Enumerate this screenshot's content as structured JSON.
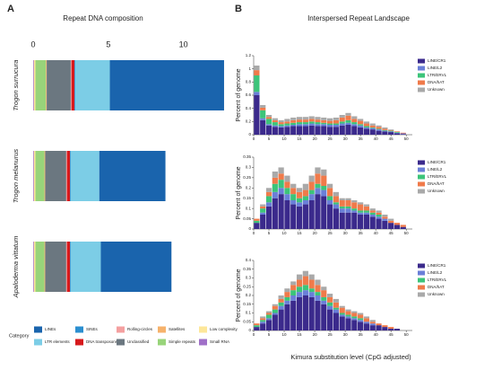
{
  "panel_labels": [
    "A",
    "B"
  ],
  "chart_data": [
    {
      "type": "stacked_barh",
      "title": "Repeat DNA composition",
      "categories": [
        "Trogon surrucura",
        "Trogon melanurus",
        "Apaloderma vittatum"
      ],
      "xlim": [
        0,
        13
      ],
      "xticks": [
        0,
        5,
        10
      ],
      "legend_title": "Category",
      "series": [
        {
          "name": "LINEs",
          "color": "#1a64ad",
          "values": [
            7.6,
            4.4,
            4.7
          ]
        },
        {
          "name": "LTR elements",
          "color": "#7ccde6",
          "values": [
            2.3,
            1.9,
            2.0
          ]
        },
        {
          "name": "SINEs",
          "color": "#2b8fd0",
          "values": [
            0.05,
            0.05,
            0.05
          ]
        },
        {
          "name": "DNA transposons",
          "color": "#d7191c",
          "values": [
            0.2,
            0.2,
            0.2
          ]
        },
        {
          "name": "Rolling-circles",
          "color": "#f4a0a0",
          "values": [
            0.05,
            0.05,
            0.05
          ]
        },
        {
          "name": "Unclassified",
          "color": "#6b7780",
          "values": [
            1.6,
            1.4,
            1.4
          ]
        },
        {
          "name": "Satellites",
          "color": "#f6b26b",
          "values": [
            0.05,
            0.05,
            0.05
          ]
        },
        {
          "name": "Simple repeats",
          "color": "#98d47a",
          "values": [
            0.7,
            0.6,
            0.6
          ]
        },
        {
          "name": "Low complexity",
          "color": "#fde79a",
          "values": [
            0.1,
            0.1,
            0.1
          ]
        },
        {
          "name": "Small RNA",
          "color": "#a070c8",
          "values": [
            0.05,
            0.05,
            0.05
          ]
        }
      ]
    },
    {
      "type": "histogram",
      "title": "Interspersed Repeat Landscape",
      "ylabel": "Percent of genome",
      "bins": [
        0,
        2,
        4,
        6,
        8,
        10,
        12,
        14,
        16,
        18,
        20,
        22,
        24,
        26,
        28,
        30,
        32,
        34,
        36,
        38,
        40,
        42,
        44,
        46,
        48,
        50
      ],
      "xlim": [
        0,
        52
      ],
      "xticks": [
        0,
        5,
        10,
        15,
        20,
        25,
        30,
        35,
        40,
        45,
        50
      ],
      "ylim": [
        0,
        1.2
      ],
      "yticks": [
        0,
        0.2,
        0.4,
        0.6,
        0.8,
        1,
        1.2
      ],
      "series": [
        {
          "name": "LINE/CR1",
          "color": "#3b2a8c",
          "values": [
            0.6,
            0.22,
            0.14,
            0.12,
            0.11,
            0.12,
            0.13,
            0.13,
            0.13,
            0.14,
            0.13,
            0.13,
            0.12,
            0.12,
            0.14,
            0.15,
            0.13,
            0.11,
            0.09,
            0.08,
            0.06,
            0.05,
            0.04,
            0.02,
            0.01
          ]
        },
        {
          "name": "LINE/L2",
          "color": "#6a7fd8",
          "values": [
            0.05,
            0.03,
            0.02,
            0.02,
            0.02,
            0.02,
            0.02,
            0.03,
            0.03,
            0.03,
            0.03,
            0.03,
            0.03,
            0.03,
            0.03,
            0.03,
            0.03,
            0.03,
            0.02,
            0.02,
            0.02,
            0.01,
            0.01,
            0.01,
            0.01
          ]
        },
        {
          "name": "LTR/ERVL",
          "color": "#3cc47a",
          "values": [
            0.25,
            0.12,
            0.08,
            0.05,
            0.03,
            0.03,
            0.03,
            0.03,
            0.03,
            0.03,
            0.03,
            0.02,
            0.02,
            0.02,
            0.03,
            0.04,
            0.03,
            0.02,
            0.02,
            0.01,
            0.01,
            0.01,
            0.01,
            0.01,
            0
          ]
        },
        {
          "name": "DNA/hAT",
          "color": "#f07a4a",
          "values": [
            0.08,
            0.04,
            0.03,
            0.03,
            0.03,
            0.03,
            0.04,
            0.04,
            0.04,
            0.04,
            0.04,
            0.04,
            0.04,
            0.05,
            0.06,
            0.07,
            0.05,
            0.05,
            0.04,
            0.03,
            0.03,
            0.02,
            0.01,
            0.01,
            0.01
          ]
        },
        {
          "name": "Unknown",
          "color": "#a9a9a9",
          "values": [
            0.07,
            0.04,
            0.03,
            0.03,
            0.03,
            0.04,
            0.04,
            0.04,
            0.04,
            0.04,
            0.04,
            0.04,
            0.04,
            0.04,
            0.04,
            0.04,
            0.04,
            0.03,
            0.03,
            0.03,
            0.02,
            0.02,
            0.01,
            0,
            0
          ]
        }
      ]
    },
    {
      "type": "histogram",
      "ylabel": "Percent of genome",
      "bins": [
        0,
        2,
        4,
        6,
        8,
        10,
        12,
        14,
        16,
        18,
        20,
        22,
        24,
        26,
        28,
        30,
        32,
        34,
        36,
        38,
        40,
        42,
        44,
        46,
        48,
        50
      ],
      "xlim": [
        0,
        52
      ],
      "xticks": [
        0,
        5,
        10,
        15,
        20,
        25,
        30,
        35,
        40,
        45,
        50
      ],
      "ylim": [
        0,
        0.35
      ],
      "yticks": [
        0,
        0.05,
        0.1,
        0.15,
        0.2,
        0.25,
        0.3,
        0.35
      ],
      "series": [
        {
          "name": "LINE/CR1",
          "color": "#3b2a8c",
          "values": [
            0.03,
            0.07,
            0.11,
            0.15,
            0.17,
            0.14,
            0.12,
            0.11,
            0.12,
            0.14,
            0.17,
            0.16,
            0.12,
            0.1,
            0.08,
            0.08,
            0.08,
            0.07,
            0.07,
            0.06,
            0.05,
            0.04,
            0.03,
            0.02,
            0.01
          ]
        },
        {
          "name": "LINE/L2",
          "color": "#6a7fd8",
          "values": [
            0,
            0.01,
            0.02,
            0.03,
            0.03,
            0.03,
            0.02,
            0.02,
            0.02,
            0.03,
            0.03,
            0.03,
            0.02,
            0.02,
            0.02,
            0.02,
            0.01,
            0.01,
            0.01,
            0.01,
            0.01,
            0.01,
            0,
            0,
            0
          ]
        },
        {
          "name": "LTR/ERVL",
          "color": "#3cc47a",
          "values": [
            0.01,
            0.02,
            0.03,
            0.04,
            0.04,
            0.03,
            0.03,
            0.02,
            0.02,
            0.02,
            0.02,
            0.02,
            0.02,
            0.01,
            0.01,
            0.01,
            0.01,
            0.01,
            0.01,
            0.01,
            0.01,
            0,
            0,
            0,
            0
          ]
        },
        {
          "name": "DNA/hAT",
          "color": "#f07a4a",
          "values": [
            0.01,
            0.01,
            0.02,
            0.03,
            0.03,
            0.03,
            0.03,
            0.03,
            0.03,
            0.04,
            0.05,
            0.05,
            0.04,
            0.03,
            0.03,
            0.03,
            0.03,
            0.03,
            0.02,
            0.01,
            0.01,
            0.01,
            0.01,
            0.01,
            0.01
          ]
        },
        {
          "name": "Unknown",
          "color": "#a9a9a9",
          "values": [
            0,
            0.01,
            0.02,
            0.03,
            0.03,
            0.03,
            0.02,
            0.02,
            0.03,
            0.03,
            0.03,
            0.03,
            0.02,
            0.02,
            0.01,
            0.01,
            0.01,
            0.01,
            0.01,
            0.01,
            0.01,
            0.01,
            0.01,
            0,
            0
          ]
        }
      ]
    },
    {
      "type": "histogram",
      "ylabel": "Percent of genome",
      "xlabel": "Kimura substitution level (CpG adjusted)",
      "bins": [
        0,
        2,
        4,
        6,
        8,
        10,
        12,
        14,
        16,
        18,
        20,
        22,
        24,
        26,
        28,
        30,
        32,
        34,
        36,
        38,
        40,
        42,
        44,
        46,
        48,
        50
      ],
      "xlim": [
        0,
        52
      ],
      "xticks": [
        0,
        5,
        10,
        15,
        20,
        25,
        30,
        35,
        40,
        45,
        50
      ],
      "ylim": [
        0,
        0.4
      ],
      "yticks": [
        0,
        0.05,
        0.1,
        0.15,
        0.2,
        0.25,
        0.3,
        0.35,
        0.4
      ],
      "series": [
        {
          "name": "LINE/CR1",
          "color": "#3b2a8c",
          "values": [
            0.02,
            0.04,
            0.06,
            0.09,
            0.12,
            0.15,
            0.17,
            0.19,
            0.2,
            0.19,
            0.17,
            0.15,
            0.12,
            0.1,
            0.08,
            0.07,
            0.06,
            0.05,
            0.04,
            0.03,
            0.03,
            0.02,
            0.01,
            0.01,
            0
          ]
        },
        {
          "name": "LINE/L2",
          "color": "#6a7fd8",
          "values": [
            0,
            0.01,
            0.01,
            0.01,
            0.02,
            0.02,
            0.03,
            0.03,
            0.03,
            0.03,
            0.03,
            0.02,
            0.02,
            0.02,
            0.01,
            0.01,
            0.01,
            0.01,
            0.01,
            0.01,
            0,
            0,
            0,
            0,
            0
          ]
        },
        {
          "name": "LTR/ERVL",
          "color": "#3cc47a",
          "values": [
            0.01,
            0.01,
            0.02,
            0.02,
            0.02,
            0.02,
            0.03,
            0.03,
            0.03,
            0.02,
            0.02,
            0.02,
            0.02,
            0.01,
            0.01,
            0.01,
            0.01,
            0.01,
            0,
            0,
            0,
            0,
            0,
            0,
            0
          ]
        },
        {
          "name": "DNA/hAT",
          "color": "#f07a4a",
          "values": [
            0.01,
            0.01,
            0.01,
            0.02,
            0.02,
            0.03,
            0.03,
            0.04,
            0.05,
            0.05,
            0.04,
            0.04,
            0.03,
            0.03,
            0.03,
            0.02,
            0.02,
            0.02,
            0.02,
            0.01,
            0.01,
            0.01,
            0.01,
            0,
            0
          ]
        },
        {
          "name": "Unknown",
          "color": "#a9a9a9",
          "values": [
            0,
            0.01,
            0.01,
            0.01,
            0.02,
            0.02,
            0.02,
            0.03,
            0.03,
            0.03,
            0.03,
            0.02,
            0.02,
            0.02,
            0.01,
            0.01,
            0.01,
            0.01,
            0.01,
            0.01,
            0,
            0,
            0,
            0,
            0
          ]
        }
      ]
    }
  ]
}
